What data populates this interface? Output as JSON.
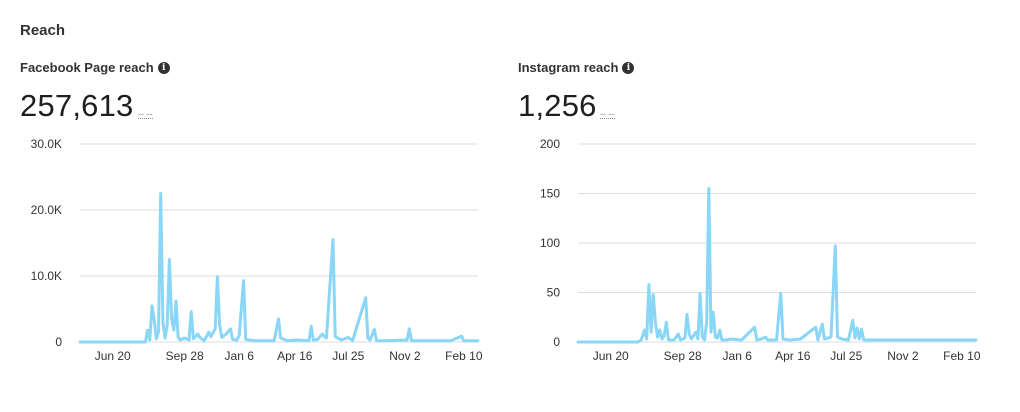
{
  "section": {
    "title": "Reach"
  },
  "charts": [
    {
      "label": "Facebook Page reach",
      "value": "257,613",
      "delta": "-- --",
      "icon": "info-icon"
    },
    {
      "label": "Instagram reach",
      "value": "1,256",
      "delta": "-- --",
      "icon": "info-icon"
    }
  ],
  "chart_data": [
    {
      "type": "line",
      "color": "#8ad6f7",
      "ylim": [
        0,
        30000
      ],
      "yticks": [
        0,
        10000,
        20000,
        30000
      ],
      "ytick_labels": [
        "0",
        "10.0K",
        "20.0K",
        "30.0K"
      ],
      "xlim": [
        0,
        365
      ],
      "xtick_positions": [
        30,
        96,
        146,
        197,
        246,
        298,
        352
      ],
      "xtick_labels": [
        "Jun 20",
        "Sep 28",
        "Jan 6",
        "Apr 16",
        "Jul 25",
        "Nov 2",
        "Feb 10"
      ],
      "series": [
        {
          "points": [
            [
              0,
              0
            ],
            [
              60,
              0
            ],
            [
              62,
              1800
            ],
            [
              64,
              300
            ],
            [
              66,
              5500
            ],
            [
              68,
              3500
            ],
            [
              70,
              500
            ],
            [
              72,
              1500
            ],
            [
              74,
              22500
            ],
            [
              76,
              3000
            ],
            [
              78,
              600
            ],
            [
              80,
              2500
            ],
            [
              82,
              12500
            ],
            [
              84,
              3500
            ],
            [
              86,
              1800
            ],
            [
              88,
              6200
            ],
            [
              90,
              800
            ],
            [
              92,
              300
            ],
            [
              96,
              600
            ],
            [
              100,
              300
            ],
            [
              102,
              4600
            ],
            [
              104,
              500
            ],
            [
              108,
              1200
            ],
            [
              110,
              700
            ],
            [
              114,
              200
            ],
            [
              118,
              1500
            ],
            [
              120,
              800
            ],
            [
              124,
              2000
            ],
            [
              126,
              9900
            ],
            [
              128,
              2600
            ],
            [
              130,
              700
            ],
            [
              134,
              1200
            ],
            [
              138,
              2000
            ],
            [
              140,
              400
            ],
            [
              144,
              300
            ],
            [
              146,
              1000
            ],
            [
              150,
              9300
            ],
            [
              152,
              400
            ],
            [
              160,
              200
            ],
            [
              178,
              200
            ],
            [
              182,
              3500
            ],
            [
              184,
              600
            ],
            [
              190,
              200
            ],
            [
              200,
              300
            ],
            [
              210,
              200
            ],
            [
              212,
              2400
            ],
            [
              214,
              300
            ],
            [
              218,
              400
            ],
            [
              222,
              1200
            ],
            [
              226,
              600
            ],
            [
              232,
              15500
            ],
            [
              234,
              800
            ],
            [
              240,
              300
            ],
            [
              246,
              700
            ],
            [
              250,
              200
            ],
            [
              262,
              6700
            ],
            [
              264,
              600
            ],
            [
              266,
              300
            ],
            [
              270,
              1900
            ],
            [
              272,
              200
            ],
            [
              280,
              200
            ],
            [
              300,
              300
            ],
            [
              302,
              2000
            ],
            [
              304,
              200
            ],
            [
              320,
              200
            ],
            [
              340,
              200
            ],
            [
              350,
              900
            ],
            [
              352,
              200
            ],
            [
              365,
              200
            ]
          ]
        }
      ]
    },
    {
      "type": "line",
      "color": "#8ad6f7",
      "ylim": [
        0,
        200
      ],
      "yticks": [
        0,
        50,
        100,
        150,
        200
      ],
      "ytick_labels": [
        "0",
        "50",
        "100",
        "150",
        "200"
      ],
      "xlim": [
        0,
        365
      ],
      "xtick_positions": [
        30,
        96,
        146,
        197,
        246,
        298,
        352
      ],
      "xtick_labels": [
        "Jun 20",
        "Sep 28",
        "Jan 6",
        "Apr 16",
        "Jul 25",
        "Nov 2",
        "Feb 10"
      ],
      "series": [
        {
          "points": [
            [
              0,
              0
            ],
            [
              55,
              0
            ],
            [
              58,
              2
            ],
            [
              61,
              12
            ],
            [
              63,
              3
            ],
            [
              65,
              58
            ],
            [
              67,
              10
            ],
            [
              69,
              48
            ],
            [
              71,
              20
            ],
            [
              73,
              5
            ],
            [
              75,
              12
            ],
            [
              77,
              3
            ],
            [
              79,
              6
            ],
            [
              81,
              20
            ],
            [
              83,
              2
            ],
            [
              88,
              2
            ],
            [
              92,
              8
            ],
            [
              94,
              2
            ],
            [
              98,
              4
            ],
            [
              100,
              28
            ],
            [
              102,
              8
            ],
            [
              104,
              3
            ],
            [
              108,
              10
            ],
            [
              110,
              3
            ],
            [
              112,
              49
            ],
            [
              114,
              5
            ],
            [
              116,
              2
            ],
            [
              118,
              20
            ],
            [
              120,
              155
            ],
            [
              122,
              10
            ],
            [
              124,
              30
            ],
            [
              126,
              5
            ],
            [
              128,
              4
            ],
            [
              130,
              12
            ],
            [
              132,
              2
            ],
            [
              136,
              2
            ],
            [
              140,
              3
            ],
            [
              150,
              2
            ],
            [
              162,
              15
            ],
            [
              164,
              2
            ],
            [
              168,
              3
            ],
            [
              172,
              5
            ],
            [
              174,
              2
            ],
            [
              182,
              2
            ],
            [
              186,
              49
            ],
            [
              188,
              3
            ],
            [
              194,
              2
            ],
            [
              204,
              3
            ],
            [
              218,
              15
            ],
            [
              220,
              2
            ],
            [
              224,
              18
            ],
            [
              226,
              3
            ],
            [
              232,
              5
            ],
            [
              236,
              97
            ],
            [
              238,
              5
            ],
            [
              242,
              3
            ],
            [
              248,
              2
            ],
            [
              252,
              22
            ],
            [
              254,
              4
            ],
            [
              256,
              14
            ],
            [
              258,
              3
            ],
            [
              260,
              13
            ],
            [
              262,
              2
            ],
            [
              270,
              2
            ],
            [
              300,
              2
            ],
            [
              330,
              2
            ],
            [
              365,
              2
            ]
          ]
        }
      ]
    }
  ]
}
